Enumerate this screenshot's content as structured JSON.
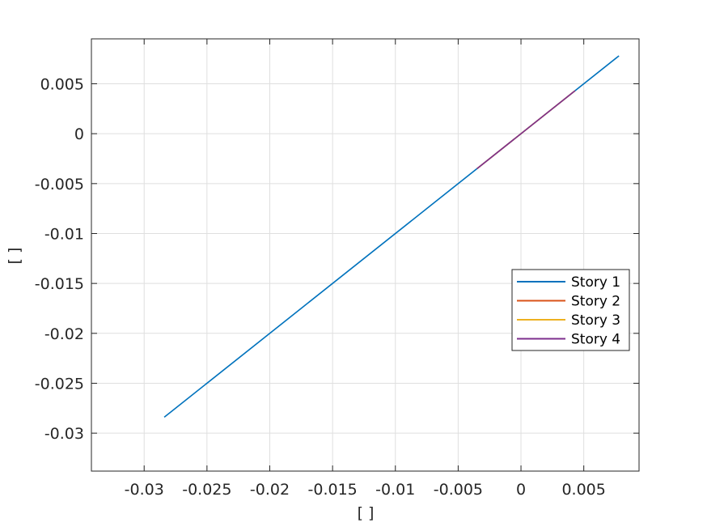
{
  "chart_data": {
    "type": "line",
    "xlabel": "[ ]",
    "ylabel": "[ ]",
    "xlim": [
      -0.0342,
      0.0094
    ],
    "ylim": [
      -0.0338,
      0.0095
    ],
    "grid": true,
    "legend_position": "right",
    "xticks": [
      {
        "value": -0.03,
        "label": "-0.03"
      },
      {
        "value": -0.025,
        "label": "-0.025"
      },
      {
        "value": -0.02,
        "label": "-0.02"
      },
      {
        "value": -0.015,
        "label": "-0.015"
      },
      {
        "value": -0.01,
        "label": "-0.01"
      },
      {
        "value": -0.005,
        "label": "-0.005"
      },
      {
        "value": 0,
        "label": "0"
      },
      {
        "value": 0.005,
        "label": "0.005"
      }
    ],
    "yticks": [
      {
        "value": 0.005,
        "label": "0.005"
      },
      {
        "value": 0,
        "label": "0"
      },
      {
        "value": -0.005,
        "label": "-0.005"
      },
      {
        "value": -0.01,
        "label": "-0.01"
      },
      {
        "value": -0.015,
        "label": "-0.015"
      },
      {
        "value": -0.02,
        "label": "-0.02"
      },
      {
        "value": -0.025,
        "label": "-0.025"
      },
      {
        "value": -0.03,
        "label": "-0.03"
      }
    ],
    "series": [
      {
        "name": "Story 1",
        "color": "#0072BD",
        "x": [
          -0.0284,
          0.0078
        ],
        "y": [
          -0.0284,
          0.0078
        ]
      },
      {
        "name": "Story 2",
        "color": "#D95319",
        "x": [
          -0.0035,
          0.0043
        ],
        "y": [
          -0.0035,
          0.0043
        ]
      },
      {
        "name": "Story 3",
        "color": "#EDB120",
        "x": [
          -0.0035,
          0.0043
        ],
        "y": [
          -0.0035,
          0.0043
        ]
      },
      {
        "name": "Story 4",
        "color": "#7E2F8E",
        "x": [
          -0.0035,
          0.0043
        ],
        "y": [
          -0.0035,
          0.0043
        ]
      }
    ]
  }
}
